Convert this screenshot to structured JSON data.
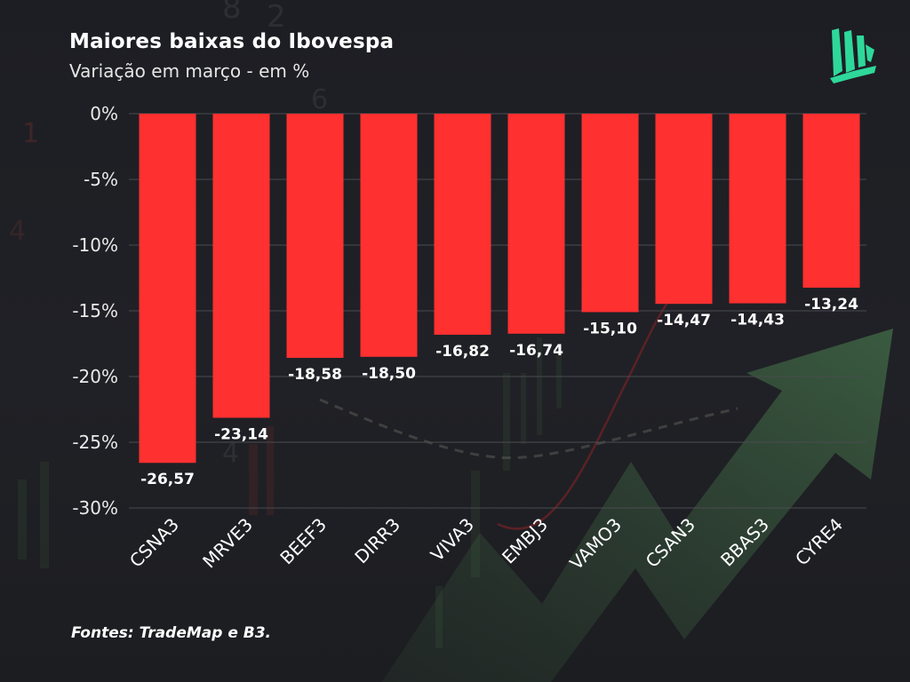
{
  "header": {
    "title": "Maiores baixas do Ibovespa",
    "subtitle": "Variação em março - em %"
  },
  "footer": {
    "source": "Fontes: TradeMap e B3."
  },
  "logo": {
    "icon": "book-pages-logo-icon",
    "color": "#2ed89b"
  },
  "colors": {
    "bar": "#ff3030",
    "grid": "#4a4b50",
    "background": "#1d1e23"
  },
  "chart_data": {
    "type": "bar",
    "title": "Maiores baixas do Ibovespa",
    "subtitle": "Variação em março - em %",
    "xlabel": "",
    "ylabel": "",
    "categories": [
      "CSNA3",
      "MRVE3",
      "BEEF3",
      "DIRR3",
      "VIVA3",
      "EMBJ3",
      "VAMO3",
      "CSAN3",
      "BBAS3",
      "CYRE4"
    ],
    "values": [
      -26.57,
      -23.14,
      -18.58,
      -18.5,
      -16.82,
      -16.74,
      -15.1,
      -14.47,
      -14.43,
      -13.24
    ],
    "data_labels": [
      "-26,57",
      "-23,14",
      "-18,58",
      "-18,50",
      "-16,82",
      "-16,74",
      "-15,10",
      "-14,47",
      "-14,43",
      "-13,24"
    ],
    "yticks": [
      0,
      -5,
      -10,
      -15,
      -20,
      -25,
      -30
    ],
    "ytick_labels": [
      "0%",
      "-5%",
      "-10%",
      "-15%",
      "-20%",
      "-25%",
      "-30%"
    ],
    "ylim": [
      -30,
      0
    ],
    "grid": true,
    "legend": "none"
  }
}
